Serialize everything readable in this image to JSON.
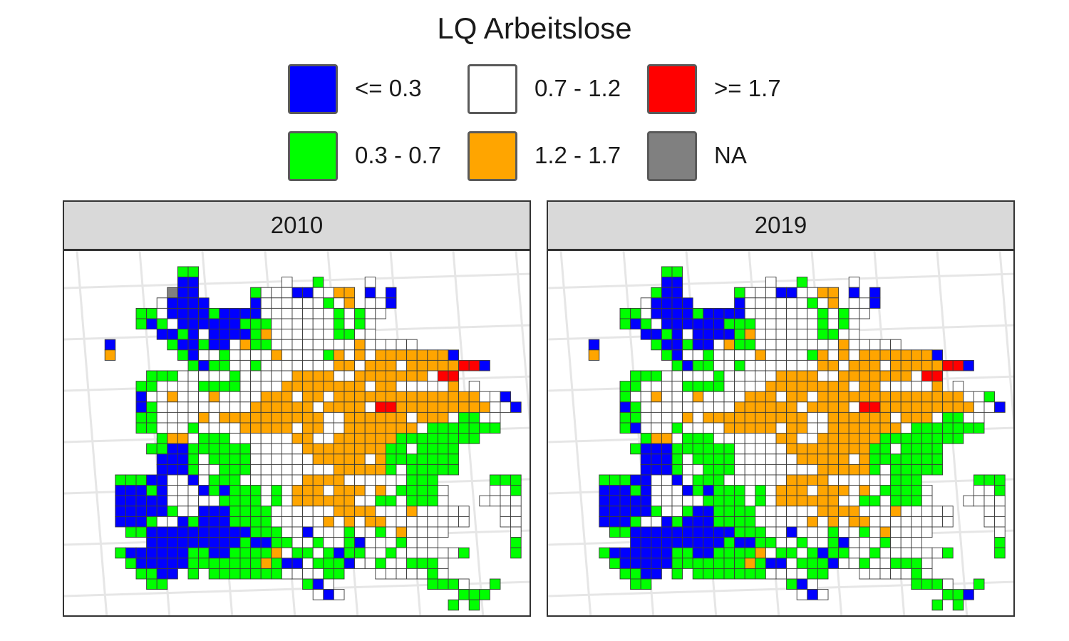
{
  "legend": {
    "title": "LQ Arbeitslose",
    "items": [
      {
        "label": "<= 0.3",
        "color": "#0000ff"
      },
      {
        "label": "0.7 - 1.2",
        "color": "#ffffff"
      },
      {
        "label": ">= 1.7",
        "color": "#ff0000"
      },
      {
        "label": "0.3 - 0.7",
        "color": "#00ff00"
      },
      {
        "label": "1.2 - 1.7",
        "color": "#ffa500"
      },
      {
        "label": "NA",
        "color": "#808080"
      }
    ]
  },
  "panels": [
    {
      "title": "2010"
    },
    {
      "title": "2019"
    }
  ],
  "chart_data": {
    "type": "heatmap",
    "title": "LQ Arbeitslose",
    "legend_position": "top",
    "grid": true,
    "classes": {
      "B": "<= 0.3",
      "G": "0.3 - 0.7",
      "W": "0.7 - 1.2",
      "O": "1.2 - 1.7",
      "R": ">= 1.7",
      "N": "NA"
    },
    "maps": [
      {
        "facet": "2010",
        "rows": [
          ".........GG........................",
          ".........BB........W..G....W.......",
          "........NBB.....GWWWBBWWOO.B.B......",
          ".......WBBBB....BWWWWWWGWO.WWB......",
          ".....GGWBBBBGBBBBWWWWWWWGWGWW.......",
          ".....GBGWBBBBBBGGGWWWWWWGWGW........",
          ".......BBGBWBBBBGOWWWWWWGGWW.........",
          "..B.....GBBGBBWOGGWWWWWWWWOWWWWW..........",
          "..O......GBWWGWWWWOWWWWGOWOWOOOOOOOB.........",
          "..........GBGGWWGWWWWWWWOOWOOOWOOOOORRB........",
          "......GGGWWWWWGWWWWWOOOOWWOOOOOOOWRR..........",
          ".....GGWWWWGGGGWWWWOOOOOOOOWOOWWWWWO.W........",
          ".....BWWOWWWOWWWWOOOWOOWOOOOOOOOOOOOOOWWB.......",
          ".....BGWWWWWWWWWOOOOOOWOOOOWRROOOOOOOOOWWB.......",
          ".....GGWWWWOWOOOOOOOOOOWWOOOOOOWOOOWGGWW.........",
          ".....GGWWWGWWWWOOOOOWOOWWOOOOOOOWGGGGGGG.........",
          ".......GOOWGGGWWWWWWOOWWOOOOOOGGGGGGGG...........",
          "......GGBBGGGGGGWWWWWOOOOOOOOGGWGGGG...........",
          ".......BBBGWGGGGWWWWWWOOOOOWOGGGGGGG...........",
          ".......BBBGWWGGGWWWWWWWWOOOOOGWGGGGG............",
          "...GGGBBWWBWGGGWWWWWWOOOOWWWWWWGGG.....GGG......",
          "...BBBGBWWWBGBGGGWGWOOOWOOOWOWGGGGW....WWGG.....",
          "...BBBBBWWWWWGGGGWGWOOOOOOWWGGWGGGW...WWWWGGG....",
          "...BBBBBGWWBBBGGGGWWWWWWOOOOWWWOWWWWW...WWWWGGG...",
          "...BBBGWWBGBBBGGGGWWWWWOWOWOOWWWWWWWW...WWWWWGG...",
          "....GGBBBBBBBBBBGGGWWBWWWGWWGWOWWWW......WWWGGW...",
          "......BBBBBBBBBGBBGGWWGWWGBWWWGWWW.......GGGWWBB..",
          "...GBBBBBBGGBBGGGGOWGGWGBGGWWGWWWWWWG....GGGBB....",
          "....GBBBBBGGGGGGGOGBBWGGGBWWGWWGGGW.......GG.....",
          ".....GGBB.G.GGGGGGGWWWWGG...WWWWWGW.......G.......",
          "......GG.............GBW.........GGGW..G.........",
          "......................WBW...........GGG.........",
          "...................................G.G..........",
          "..........................................G.....",
          "...........................................G...."
        ]
      },
      {
        "facet": "2019",
        "rows": [
          ".........GG........................",
          ".........BB........W..G....W.......",
          "........GBB.....GWWWBBWWOO.B.B......",
          ".......WBBBB....BWWWWWWGWO.WWB......",
          ".....GGWBBBBGBBBBWWWWWWWGWGWW.......",
          ".....GBGWBBBBBBGGGWWWWWWGWGW........",
          ".......BBGBWBBBBGOWWWWWWGGWW.........",
          "..B.....GBBGBBWOGGWWWWWWWWOWWWWW..........",
          "..O......GBWWGWWWWOWWWWGOWOWOOOOOOOB.........",
          "..........GBGGWWGWWWWWWWOOWOOOWOOOOORRB........",
          "......GGGWWWWWGWWWWWOOOOWWOOOOOOOWRR..........",
          ".....GGWWWWGGGGWWWWOOOOOOOOWOOWWWWWO.W........",
          ".....GWWOWWWOWWWWOOOWOOWOOOOOOOOOOOOOOWWG.......",
          ".....BGWWWWWWWWWOOOOOOWOOOOWRROOOOOOOOOWWB.......",
          ".....GGWWWWOWOOOOOOOOOOWWOOOOOOWOOOWGGWW.........",
          ".....GBWWWGWWWWOOOOOWOOWWOOOOOOOWGGGGGGG.........",
          ".......GOOWGGGWWWWWWOOWWOOOOOOGGGGGGGG...........",
          "......GBBBGGGGGGWWWWWOOOOOOOOGGWGGGG...........",
          ".......BBBGWGGGGWWWWWWOOOOOWOGGGGGGG...........",
          ".......BBBGWWGGGWWWWWWWWOOOOOGWGGGGG............",
          "...GGGBBWWBWGGGWWWWWWOOOOWWWWWWGGG.....GGG......",
          "...BBBGBWWWBGBGGGWGWOOOWOOOWOWGGGGW....WWGG.....",
          "...BBBBBWWWWWGGGGWGWOOOOOOWWGGWGGGW...WWWWGGG....",
          "...BBBBBGWWGBBGGGGWWWWWWOOOOWWWOWWWWW...WWWWGGG...",
          "...BBBGWWBGBBBGGGGWWWWWOWOWOOWWWWWWWW...WWWWWGG...",
          "....GGBBBBBBBBBBGGGWWBWWWGWWGWOWWWW......WWWGGW...",
          "......BBBBBBBBBGBBGGWWGWWGBWWWGWWW.......GGGWWGG..",
          "...GBBBBBBGGBBGGGGOWGGWGBGGWWGWWWWWWG....GGGBB....",
          "....GBBBBBGGGGGGGOGBBWGGGBWWGWWGGGW.......GG.....",
          ".....GGBB.G.GGGGGGGWWWWGG...WWWWWGW.......G.......",
          "......GG.............GBW.........GGGW..G.........",
          "......................WBW...........GGB.........",
          "...................................G.G..........",
          "..........................................G.....",
          "...........................................G...."
        ]
      }
    ]
  }
}
